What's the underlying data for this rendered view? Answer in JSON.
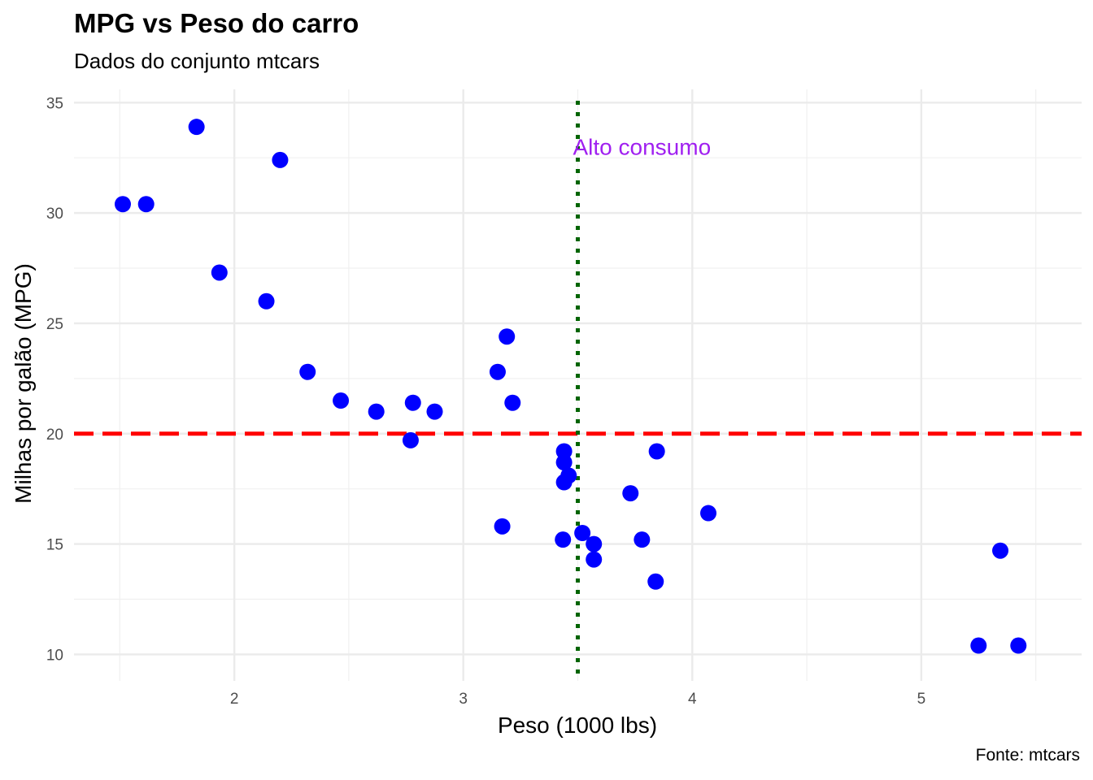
{
  "chart_data": {
    "type": "scatter",
    "title": "MPG vs Peso do carro",
    "subtitle": "Dados do conjunto mtcars",
    "caption": "Fonte: mtcars",
    "xlabel": "Peso (1000 lbs)",
    "ylabel": "Milhas por galão (MPG)",
    "xlim": [
      1.3,
      5.7
    ],
    "ylim": [
      8.8,
      35.6
    ],
    "x_ticks": [
      2,
      3,
      4,
      5
    ],
    "y_ticks": [
      10,
      15,
      20,
      25,
      30,
      35
    ],
    "grid": true,
    "point_color": "#0000ff",
    "points": [
      {
        "x": 2.62,
        "y": 21.0
      },
      {
        "x": 2.875,
        "y": 21.0
      },
      {
        "x": 2.32,
        "y": 22.8
      },
      {
        "x": 3.215,
        "y": 21.4
      },
      {
        "x": 3.44,
        "y": 18.7
      },
      {
        "x": 3.46,
        "y": 18.1
      },
      {
        "x": 3.57,
        "y": 14.3
      },
      {
        "x": 3.19,
        "y": 24.4
      },
      {
        "x": 3.15,
        "y": 22.8
      },
      {
        "x": 3.44,
        "y": 19.2
      },
      {
        "x": 3.44,
        "y": 17.8
      },
      {
        "x": 4.07,
        "y": 16.4
      },
      {
        "x": 3.73,
        "y": 17.3
      },
      {
        "x": 3.78,
        "y": 15.2
      },
      {
        "x": 5.25,
        "y": 10.4
      },
      {
        "x": 5.424,
        "y": 10.4
      },
      {
        "x": 5.345,
        "y": 14.7
      },
      {
        "x": 2.2,
        "y": 32.4
      },
      {
        "x": 1.615,
        "y": 30.4
      },
      {
        "x": 1.835,
        "y": 33.9
      },
      {
        "x": 2.465,
        "y": 21.5
      },
      {
        "x": 3.52,
        "y": 15.5
      },
      {
        "x": 3.435,
        "y": 15.2
      },
      {
        "x": 3.84,
        "y": 13.3
      },
      {
        "x": 3.845,
        "y": 19.2
      },
      {
        "x": 1.935,
        "y": 27.3
      },
      {
        "x": 2.14,
        "y": 26.0
      },
      {
        "x": 1.513,
        "y": 30.4
      },
      {
        "x": 3.17,
        "y": 15.8
      },
      {
        "x": 2.77,
        "y": 19.7
      },
      {
        "x": 3.57,
        "y": 15.0
      },
      {
        "x": 2.78,
        "y": 21.4
      }
    ],
    "reference_lines": [
      {
        "orientation": "horizontal",
        "value": 20,
        "color": "#ff0000",
        "style": "dashed"
      },
      {
        "orientation": "vertical",
        "value": 3.5,
        "color": "#006400",
        "style": "dotted"
      }
    ],
    "annotations": [
      {
        "text": "Alto consumo",
        "x": 3.5,
        "y": 33,
        "color": "#a020f0"
      }
    ]
  }
}
